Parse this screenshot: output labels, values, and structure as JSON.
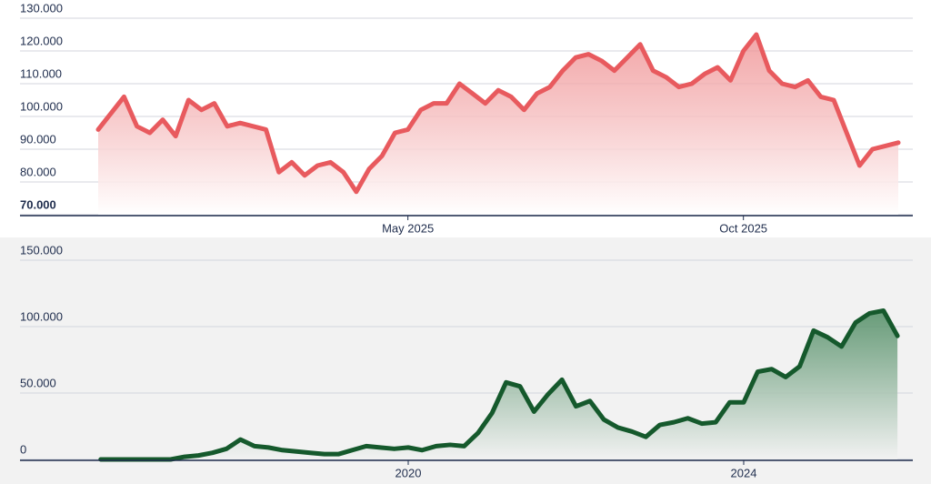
{
  "chart_data": [
    {
      "type": "area",
      "color": "#e85a5e",
      "grid": true,
      "categories": [
        null,
        null,
        null,
        null,
        null,
        null,
        null,
        null,
        null,
        null,
        null,
        null,
        null,
        null,
        null,
        null,
        null,
        null,
        null,
        null,
        null,
        null,
        null,
        null,
        "May 2025",
        null,
        null,
        null,
        null,
        null,
        null,
        null,
        null,
        null,
        null,
        null,
        null,
        null,
        null,
        null,
        null,
        null,
        null,
        null,
        null,
        null,
        null,
        null,
        null,
        null,
        "Oct 2025",
        null,
        null,
        null,
        null,
        null,
        null,
        null,
        null,
        null,
        null,
        null,
        null
      ],
      "values": [
        96000,
        101000,
        106000,
        97000,
        95000,
        99000,
        94000,
        105000,
        102000,
        104000,
        97000,
        98000,
        97000,
        96000,
        83000,
        86000,
        82000,
        85000,
        86000,
        83000,
        77000,
        84000,
        88000,
        95000,
        96000,
        102000,
        104000,
        104000,
        110000,
        107000,
        104000,
        108000,
        106000,
        102000,
        107000,
        109000,
        114000,
        118000,
        119000,
        117000,
        114000,
        118000,
        122000,
        114000,
        112000,
        109000,
        110000,
        113000,
        115000,
        111000,
        120000,
        125000,
        114000,
        110000,
        109000,
        111000,
        106000,
        105000,
        95000,
        85000,
        90000,
        91000,
        92000
      ],
      "ylim": [
        70000,
        130000
      ],
      "yticks": [
        {
          "value": 70000,
          "label": "70.000"
        },
        {
          "value": 80000,
          "label": "80.000"
        },
        {
          "value": 90000,
          "label": "90.000"
        },
        {
          "value": 100000,
          "label": "100.000"
        },
        {
          "value": 110000,
          "label": "110.000"
        },
        {
          "value": 120000,
          "label": "120.000"
        },
        {
          "value": 130000,
          "label": "130.000"
        }
      ]
    },
    {
      "type": "area",
      "color": "#15592c",
      "grid": true,
      "categories": [
        null,
        null,
        null,
        null,
        null,
        null,
        null,
        null,
        null,
        null,
        null,
        null,
        null,
        null,
        null,
        null,
        null,
        null,
        null,
        null,
        null,
        null,
        "2020",
        null,
        null,
        null,
        null,
        null,
        null,
        null,
        null,
        null,
        null,
        null,
        null,
        null,
        null,
        null,
        null,
        null,
        null,
        null,
        null,
        null,
        null,
        null,
        "2024",
        null,
        null,
        null,
        null,
        null,
        null,
        null,
        null,
        null,
        null,
        null
      ],
      "values": [
        0,
        0,
        0,
        0,
        0,
        0,
        2000,
        3000,
        5000,
        8000,
        15000,
        10000,
        9000,
        7000,
        6000,
        5000,
        4000,
        4000,
        7000,
        10000,
        9000,
        8000,
        9000,
        7000,
        10000,
        11000,
        10000,
        20000,
        35000,
        58000,
        55000,
        36000,
        49000,
        60000,
        40000,
        44000,
        30000,
        24000,
        21000,
        17000,
        26000,
        28000,
        31000,
        27000,
        28000,
        43000,
        43000,
        66000,
        68000,
        62000,
        70000,
        97000,
        92000,
        85000,
        103000,
        110000,
        112000,
        93000
      ],
      "ylim": [
        0,
        150000
      ],
      "yticks": [
        0,
        {
          "value": 50000,
          "label": "50.000"
        },
        {
          "value": 100000,
          "label": "100.000"
        },
        {
          "value": 150000,
          "label": "150.000"
        }
      ]
    }
  ]
}
